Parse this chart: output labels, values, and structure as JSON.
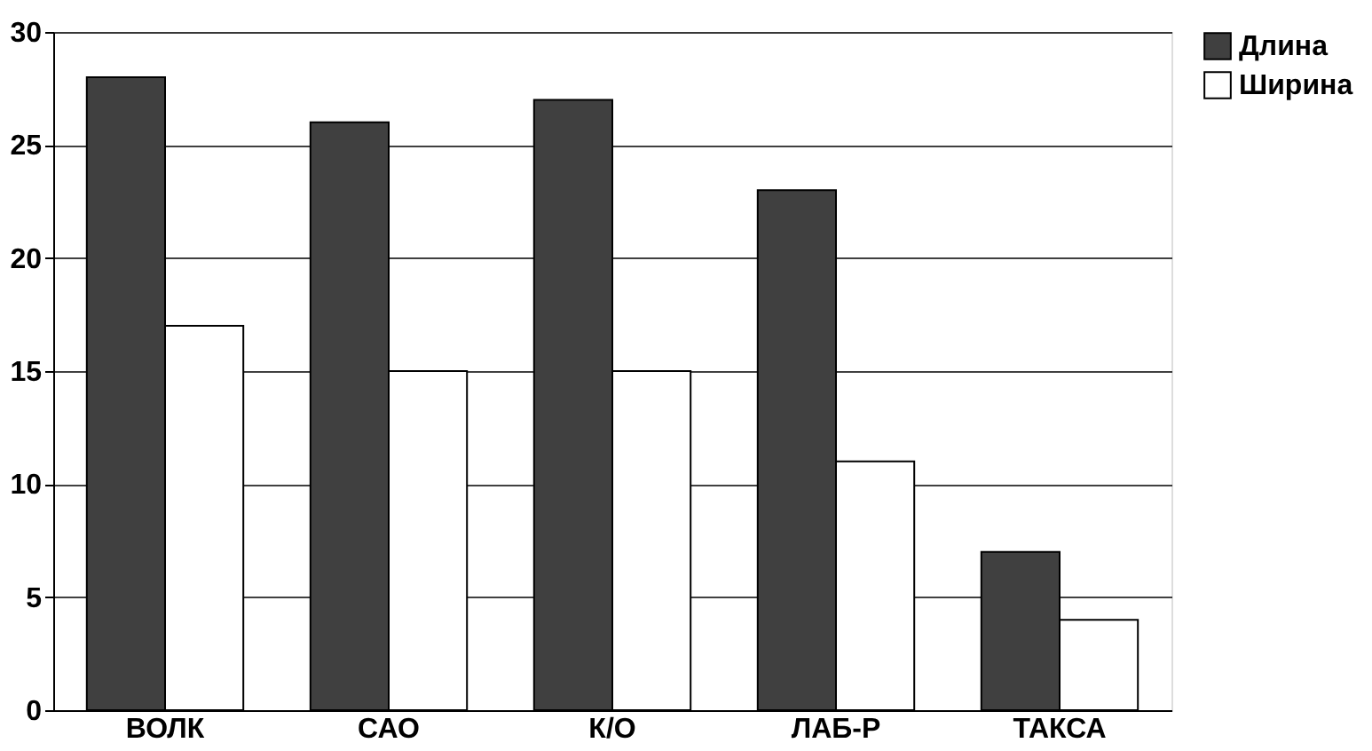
{
  "chart_data": {
    "type": "bar",
    "categories": [
      "ВОЛК",
      "САО",
      "К/О",
      "ЛАБ-Р",
      "ТАКСА"
    ],
    "series": [
      {
        "name": "Длина",
        "color": "#404040",
        "values": [
          28,
          26,
          27,
          23,
          7
        ]
      },
      {
        "name": "Ширина",
        "color": "#ffffff",
        "values": [
          17,
          15,
          15,
          11,
          4
        ]
      }
    ],
    "ylim": [
      0,
      30
    ],
    "yticks": [
      0,
      5,
      10,
      15,
      20,
      25,
      30
    ],
    "grid": "y",
    "legend": "right"
  }
}
